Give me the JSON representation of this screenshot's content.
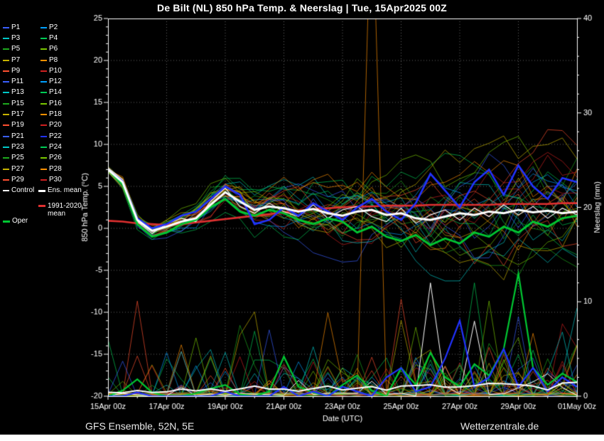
{
  "title": "De Bilt  (NL)  850 hPa Temp. & Neerslag | Tue, 15Apr2025 00Z",
  "footer": {
    "left": "GFS Ensemble, 52N, 5E",
    "right": "Wetterzentrale.de"
  },
  "legend": {
    "control_label": "Control",
    "ens_mean_label": "Ens. mean",
    "oper_label": "Oper",
    "climate_label_line1": "1991-2020",
    "climate_label_line2": "mean",
    "control_color": "#ffffff",
    "ens_mean_color": "#ffffff",
    "oper_color": "#00c832",
    "climate_color": "#e03030",
    "members": [
      {
        "label": "P1",
        "color": "#3a5fff"
      },
      {
        "label": "P2",
        "color": "#00a0ff"
      },
      {
        "label": "P3",
        "color": "#00c8c8"
      },
      {
        "label": "P4",
        "color": "#00cc55"
      },
      {
        "label": "P5",
        "color": "#1eaa1e"
      },
      {
        "label": "P6",
        "color": "#7ac800"
      },
      {
        "label": "P7",
        "color": "#c8b400"
      },
      {
        "label": "P8",
        "color": "#ff9000"
      },
      {
        "label": "P9",
        "color": "#ff5030"
      },
      {
        "label": "P10",
        "color": "#d02020"
      },
      {
        "label": "P11",
        "color": "#3a5fff"
      },
      {
        "label": "P12",
        "color": "#00a0ff"
      },
      {
        "label": "P13",
        "color": "#00c8c8"
      },
      {
        "label": "P14",
        "color": "#00cc55"
      },
      {
        "label": "P15",
        "color": "#1eaa1e"
      },
      {
        "label": "P16",
        "color": "#7ac800"
      },
      {
        "label": "P17",
        "color": "#c8b400"
      },
      {
        "label": "P18",
        "color": "#ff9000"
      },
      {
        "label": "P19",
        "color": "#ff5030"
      },
      {
        "label": "P20",
        "color": "#d02020"
      },
      {
        "label": "P21",
        "color": "#3a5fff"
      },
      {
        "label": "P22",
        "color": "#2233ff",
        "bold": true
      },
      {
        "label": "P23",
        "color": "#00c8c8"
      },
      {
        "label": "P24",
        "color": "#00cc55"
      },
      {
        "label": "P25",
        "color": "#1eaa1e"
      },
      {
        "label": "P26",
        "color": "#7ac800"
      },
      {
        "label": "P27",
        "color": "#c8b400"
      },
      {
        "label": "P28",
        "color": "#ff9000"
      },
      {
        "label": "P29",
        "color": "#ff5030"
      },
      {
        "label": "P30",
        "color": "#d02020"
      }
    ]
  },
  "chart_data": {
    "type": "line",
    "title": "De Bilt  (NL)  850 hPa Temp. & Neerslag | Tue, 15Apr2025 00Z",
    "xlabel": "Date (UTC)",
    "ylabel_left": "850 hPa Temp. (°C)",
    "ylabel_right": "Neerslag (mm)",
    "x_tick_labels": [
      "15Apr 00z",
      "17Apr 00z",
      "19Apr 00z",
      "21Apr 00z",
      "23Apr 00z",
      "25Apr 00z",
      "27Apr 00z",
      "29Apr 00z",
      "01May 00z"
    ],
    "x_hours_range": [
      0,
      384
    ],
    "x_step_hours": 12,
    "ylim_temp": [
      -20,
      25
    ],
    "ytick_labels_left": [
      -20,
      -15,
      -10,
      -5,
      0,
      5,
      10,
      15,
      20,
      25
    ],
    "ylim_precip": [
      0,
      40
    ],
    "ytick_labels_right": [
      0,
      10,
      20,
      30,
      40
    ],
    "grid": "dotted",
    "seed": 20250415,
    "envelope_spread": [
      0.4,
      0.6,
      0.8,
      0.9,
      1.0,
      1.2,
      1.4,
      1.6,
      1.8,
      2.0,
      2.2,
      2.4,
      2.6,
      2.8,
      3.0,
      3.2,
      3.4,
      3.5,
      3.7,
      3.8,
      4.0,
      4.2,
      4.4,
      4.5,
      4.7,
      4.8,
      5.0,
      5.2,
      5.4,
      5.5,
      5.6,
      5.8,
      6.0
    ],
    "extreme_precip_spike": {
      "member_index": 17,
      "t_index": 18,
      "value_mm": 55
    },
    "series": {
      "ens_mean_temp": [
        7.0,
        5.5,
        1.0,
        -0.3,
        0.2,
        0.8,
        1.2,
        2.8,
        4.3,
        3.2,
        2.2,
        2.6,
        2.4,
        2.0,
        2.3,
        1.8,
        1.5,
        2.0,
        2.2,
        1.6,
        1.8,
        1.2,
        1.0,
        1.4,
        1.8,
        1.6,
        2.0,
        1.8,
        2.2,
        1.9,
        2.1,
        1.8,
        2.0
      ],
      "control_temp": [
        7.2,
        5.8,
        0.8,
        -0.6,
        0.5,
        1.2,
        0.8,
        3.2,
        4.8,
        2.6,
        1.8,
        3.0,
        2.0,
        1.4,
        2.8,
        1.2,
        2.2,
        2.6,
        1.4,
        0.8,
        2.4,
        0.6,
        1.6,
        2.2,
        1.0,
        2.4,
        1.4,
        2.8,
        1.6,
        2.6,
        1.2,
        2.4,
        1.6
      ],
      "oper_temp": [
        7.0,
        5.2,
        0.5,
        -1.0,
        -0.5,
        0.5,
        1.0,
        2.5,
        3.5,
        2.0,
        1.5,
        2.2,
        1.8,
        1.0,
        0.5,
        1.2,
        0.8,
        -0.5,
        0.2,
        -1.0,
        -1.5,
        -0.8,
        -2.0,
        -1.2,
        -1.8,
        -0.5,
        -1.0,
        0.2,
        -0.5,
        0.8,
        0.2,
        1.2,
        1.5
      ],
      "oper_precip": [
        0,
        0.6,
        1.8,
        0.4,
        0,
        0,
        0.3,
        0.8,
        1.2,
        0.2,
        0,
        0.5,
        4.2,
        1,
        0.4,
        0,
        1.2,
        2.2,
        0.6,
        0,
        3,
        1.2,
        4.6,
        2,
        1,
        3.4,
        2.2,
        5,
        13,
        3,
        1.2,
        2.4,
        1.5
      ],
      "climate_mean_temp": [
        0.9,
        0.8,
        0.6,
        0.5,
        0.4,
        0.5,
        0.7,
        0.9,
        1.1,
        1.3,
        1.5,
        1.7,
        1.9,
        2.1,
        2.3,
        2.4,
        2.5,
        2.6,
        2.6,
        2.7,
        2.7,
        2.7,
        2.8,
        2.8,
        2.8,
        2.8,
        2.8,
        2.9,
        2.9,
        2.9,
        2.9,
        3.0,
        3.0
      ],
      "member_emphasis": {
        "label": "P22",
        "index": 21,
        "temp": [
          7.0,
          5.6,
          1.2,
          0.0,
          0.5,
          1.5,
          2.0,
          3.5,
          5.0,
          4.0,
          0.5,
          1.0,
          2.5,
          1.5,
          3.0,
          2.0,
          1.0,
          2.5,
          3.5,
          2.0,
          1.0,
          3.0,
          6.5,
          4.5,
          2.5,
          5.5,
          7.0,
          4.0,
          7.5,
          5.0,
          3.5,
          6.0,
          5.5
        ],
        "precip": [
          0,
          0,
          0.4,
          0,
          0,
          0,
          0,
          0,
          0.5,
          0,
          0,
          0,
          1,
          0,
          0.5,
          0,
          1,
          0.5,
          0,
          2,
          3,
          0.5,
          1,
          4,
          8,
          1,
          2,
          5,
          1,
          3,
          0.5,
          2,
          1
        ]
      }
    }
  }
}
